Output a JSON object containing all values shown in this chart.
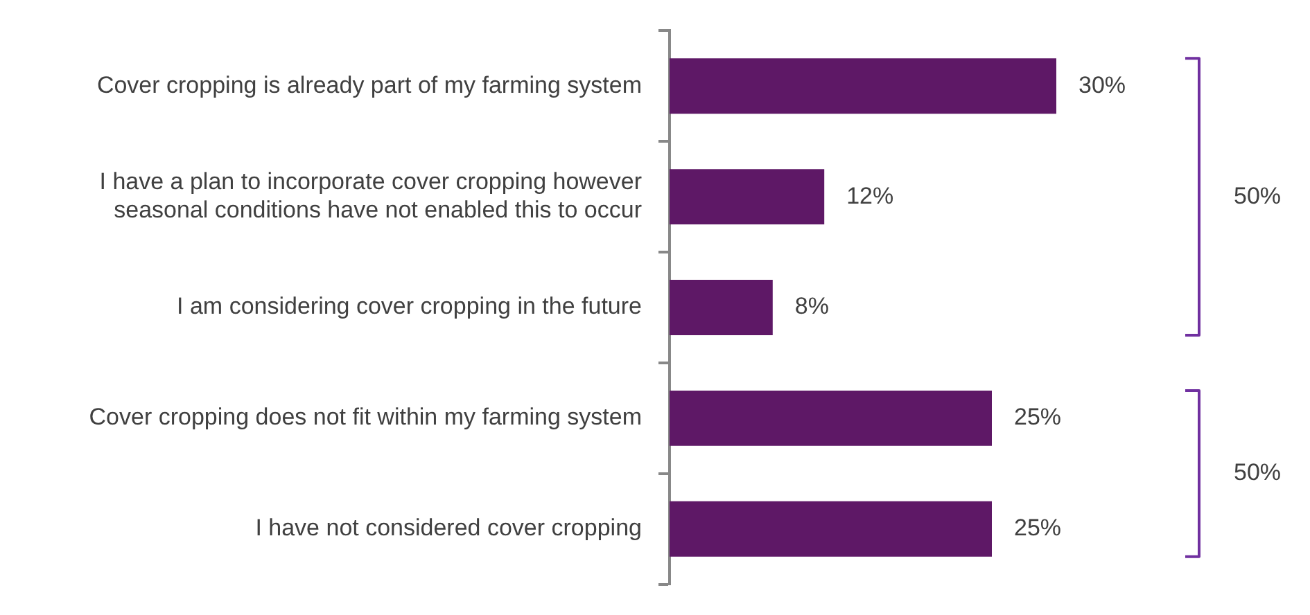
{
  "chart_data": {
    "type": "bar",
    "orientation": "horizontal",
    "categories": [
      "Cover cropping is already part of my farming system",
      "I have a plan to incorporate cover cropping however seasonal conditions have not enabled this to occur",
      "I am considering cover cropping in the future",
      "Cover cropping does not fit within my farming system",
      "I have not considered cover cropping"
    ],
    "values": [
      30,
      12,
      8,
      25,
      25
    ],
    "color": "#5e1866",
    "value_labels": [
      "30%",
      "12%",
      "8%",
      "25%",
      "25%"
    ],
    "annotations": [
      "50%",
      "50%"
    ],
    "grid": false,
    "legend": false
  }
}
